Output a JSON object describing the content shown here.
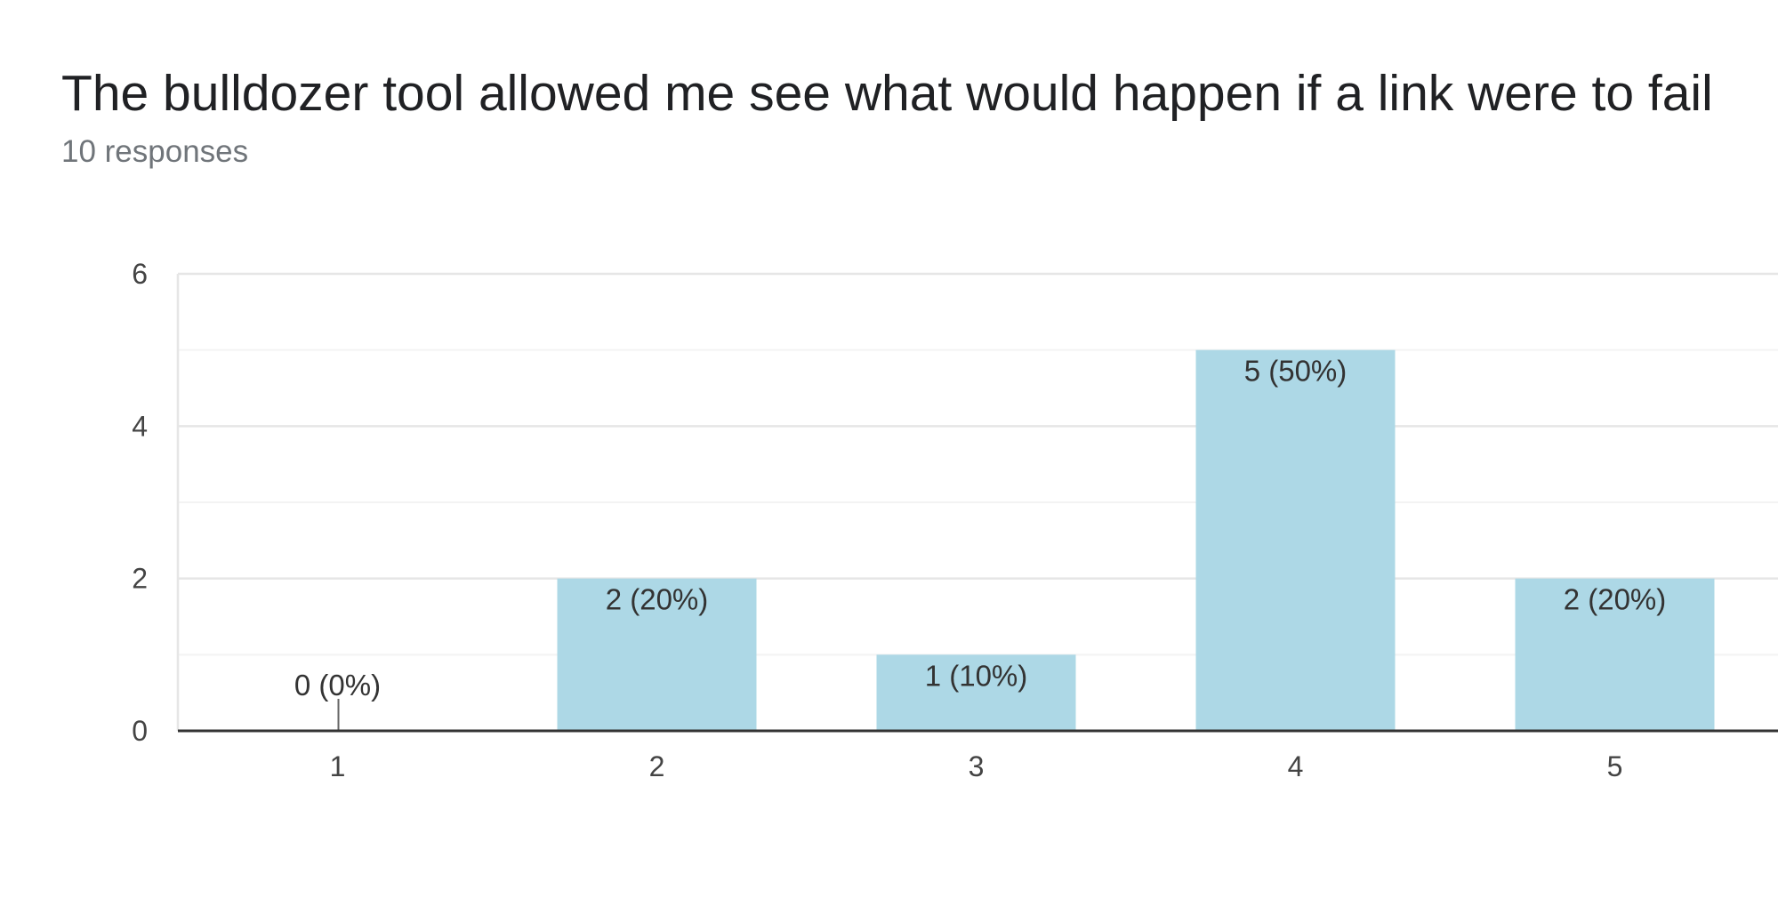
{
  "header": {
    "title": "The bulldozer tool allowed me see what would happen if a link were to fail",
    "responses": "10 responses"
  },
  "colors": {
    "bar": "#add8e6",
    "grid_major": "#e6e6e6",
    "grid_minor": "#f3f3f3",
    "baseline": "#333333"
  },
  "chart_data": {
    "type": "bar",
    "categories": [
      "1",
      "2",
      "3",
      "4",
      "5"
    ],
    "values": [
      0,
      2,
      1,
      5,
      2
    ],
    "data_labels": [
      "0 (0%)",
      "2 (20%)",
      "1 (10%)",
      "5 (50%)",
      "2 (20%)"
    ],
    "ylim": [
      0,
      6
    ],
    "yticks": [
      0,
      2,
      4,
      6
    ],
    "grid": true
  }
}
